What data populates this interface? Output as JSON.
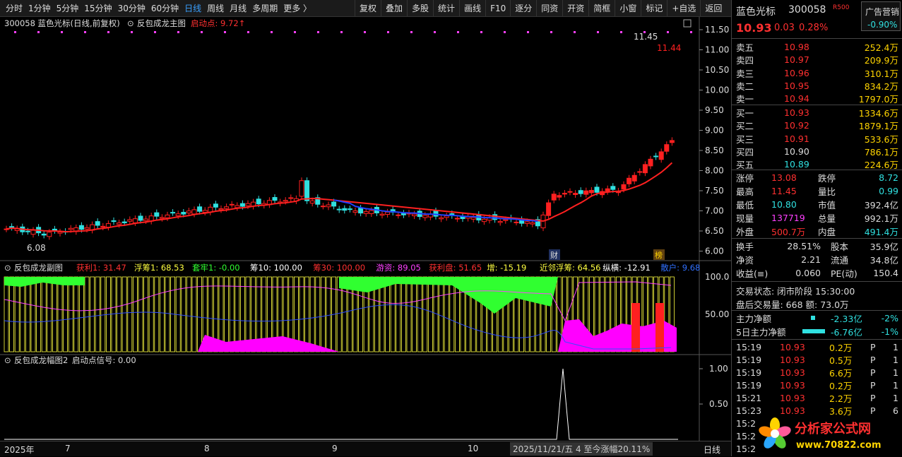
{
  "toolbar": {
    "periods": [
      "分时",
      "1分钟",
      "5分钟",
      "15分钟",
      "30分钟",
      "60分钟",
      "日线",
      "周线",
      "月线",
      "多周期",
      "更多 〉"
    ],
    "active_period": "日线",
    "tools": [
      "复权",
      "叠加",
      "多股",
      "统计",
      "画线",
      "F10",
      "逐分",
      "同资",
      "开资",
      "简框",
      "小窗",
      "标记",
      "+自选",
      "返回"
    ]
  },
  "main_header": {
    "code_name": "300058 蓝色光标(日线,前复权)",
    "indicator": "反包成龙主图",
    "start_label": "启动点: 9.72↑"
  },
  "price_axis": [
    "11.50",
    "11.00",
    "10.50",
    "10.00",
    "9.50",
    "9.00",
    "8.50",
    "8.00",
    "7.50",
    "7.00",
    "6.50",
    "6.00"
  ],
  "annotations": {
    "high_label": "11.45",
    "low_label": "6.08",
    "last_label": "11.44",
    "marker_cai": "财",
    "marker_bang": "榜"
  },
  "sub1_header": {
    "name": "反包成龙副图",
    "items": [
      {
        "label": "获利1: 31.47",
        "color": "#ff3030"
      },
      {
        "label": "浮筹1: 68.53",
        "color": "#ffff40"
      },
      {
        "label": "套牢1: -0.00",
        "color": "#30ff30"
      },
      {
        "label": "筹10: 100.00",
        "color": "#ffffff"
      },
      {
        "label": "筹30: 100.00",
        "color": "#ff3030"
      },
      {
        "label": "游资: 89.05",
        "color": "#ff40ff"
      },
      {
        "label": "获利盘: 51.65",
        "color": "#ff3030"
      },
      {
        "label": "增: -15.19",
        "color": "#ffff40"
      },
      {
        "label": "近邻浮筹: 64.56",
        "color": "#ffff40"
      },
      {
        "label": "纵横: -12.91",
        "color": "#ffffff"
      },
      {
        "label": "散户: 9.68",
        "color": "#3070ff"
      }
    ]
  },
  "sub1_axis": [
    "100.0",
    "50.00"
  ],
  "sub2_header": {
    "name": "反包成龙幅图2",
    "signal": "启动点信号: 0.00"
  },
  "sub2_axis": [
    "1.00",
    "0.50"
  ],
  "bottom_bar": {
    "year": "2025年",
    "months": [
      "7",
      "8",
      "9",
      "10"
    ],
    "info": "2025/11/21/五 4 至今涨幅20.11%",
    "period": "日线"
  },
  "quote": {
    "name": "蓝色光标",
    "code": "300058",
    "tag": "R500",
    "ad": "广告营销",
    "ad_change": "-0.90%",
    "price": "10.93",
    "change": "0.03",
    "change_pct": "0.28%",
    "asks": [
      {
        "label": "卖五",
        "price": "10.98",
        "vol": "252.4万"
      },
      {
        "label": "卖四",
        "price": "10.97",
        "vol": "209.9万"
      },
      {
        "label": "卖三",
        "price": "10.96",
        "vol": "310.1万"
      },
      {
        "label": "卖二",
        "price": "10.95",
        "vol": "834.2万"
      },
      {
        "label": "卖一",
        "price": "10.94",
        "vol": "1797.0万"
      }
    ],
    "bids": [
      {
        "label": "买一",
        "price": "10.93",
        "vol": "1334.6万"
      },
      {
        "label": "买二",
        "price": "10.92",
        "vol": "1879.1万"
      },
      {
        "label": "买三",
        "price": "10.91",
        "vol": "533.6万"
      },
      {
        "label": "买四",
        "price": "10.90",
        "vol": "786.1万"
      },
      {
        "label": "买五",
        "price": "10.89",
        "vol": "224.6万"
      }
    ],
    "stats1": [
      {
        "l1": "涨停",
        "v1": "13.08",
        "c1": "#ff3030",
        "l2": "跌停",
        "v2": "8.72",
        "c2": "#30e0e0"
      },
      {
        "l1": "最高",
        "v1": "11.45",
        "c1": "#ff3030",
        "l2": "量比",
        "v2": "0.99",
        "c2": "#30e0e0"
      },
      {
        "l1": "最低",
        "v1": "10.80",
        "c1": "#30e0e0",
        "l2": "市值",
        "v2": "392.4亿",
        "c2": "#dddddd"
      },
      {
        "l1": "现量",
        "v1": "137719",
        "c1": "#ff40ff",
        "l2": "总量",
        "v2": "992.1万",
        "c2": "#dddddd"
      },
      {
        "l1": "外盘",
        "v1": "500.7万",
        "c1": "#ff3030",
        "l2": "内盘",
        "v2": "491.4万",
        "c2": "#30e0e0"
      }
    ],
    "stats2": [
      {
        "l1": "换手",
        "v1": "28.51%",
        "l2": "股本",
        "v2": "35.9亿"
      },
      {
        "l1": "净资",
        "v1": "2.21",
        "l2": "流通",
        "v2": "34.8亿"
      },
      {
        "l1": "收益(≡)",
        "v1": "0.060",
        "l2": "PE(动)",
        "v2": "150.4"
      }
    ],
    "status": "交易状态: 闭市阶段 15:30:00",
    "after": "盘后交易量: 668  额: 73.0万",
    "flow": [
      {
        "label": "主力净额",
        "value": "-2.33亿",
        "pct": "-2%"
      },
      {
        "label": "5日主力净额",
        "value": "-6.76亿",
        "pct": "-1%"
      }
    ],
    "ticks": [
      {
        "t": "15:19",
        "p": "10.93",
        "v": "0.2万",
        "d": "P",
        "n": "1"
      },
      {
        "t": "15:19",
        "p": "10.93",
        "v": "0.5万",
        "d": "P",
        "n": "1"
      },
      {
        "t": "15:19",
        "p": "10.93",
        "v": "6.6万",
        "d": "P",
        "n": "1"
      },
      {
        "t": "15:19",
        "p": "10.93",
        "v": "0.2万",
        "d": "P",
        "n": "1"
      },
      {
        "t": "15:21",
        "p": "10.93",
        "v": "2.2万",
        "d": "P",
        "n": "1"
      },
      {
        "t": "15:23",
        "p": "10.93",
        "v": "3.6万",
        "d": "P",
        "n": "6"
      },
      {
        "t": "15:2",
        "p": "",
        "v": "",
        "d": "",
        "n": ""
      },
      {
        "t": "15:2",
        "p": "",
        "v": "",
        "d": "",
        "n": ""
      },
      {
        "t": "15:2",
        "p": "",
        "v": "",
        "d": "",
        "n": ""
      }
    ]
  },
  "watermark": {
    "title": "分析家公式网",
    "url": "www.70822.com"
  },
  "colors": {
    "up": "#ff2020",
    "down": "#30e0e0",
    "ma": "#ff2020",
    "ma_down": "#2040ff",
    "yellow": "#ffff40",
    "magenta": "#ff00ff",
    "green": "#30ff30"
  }
}
